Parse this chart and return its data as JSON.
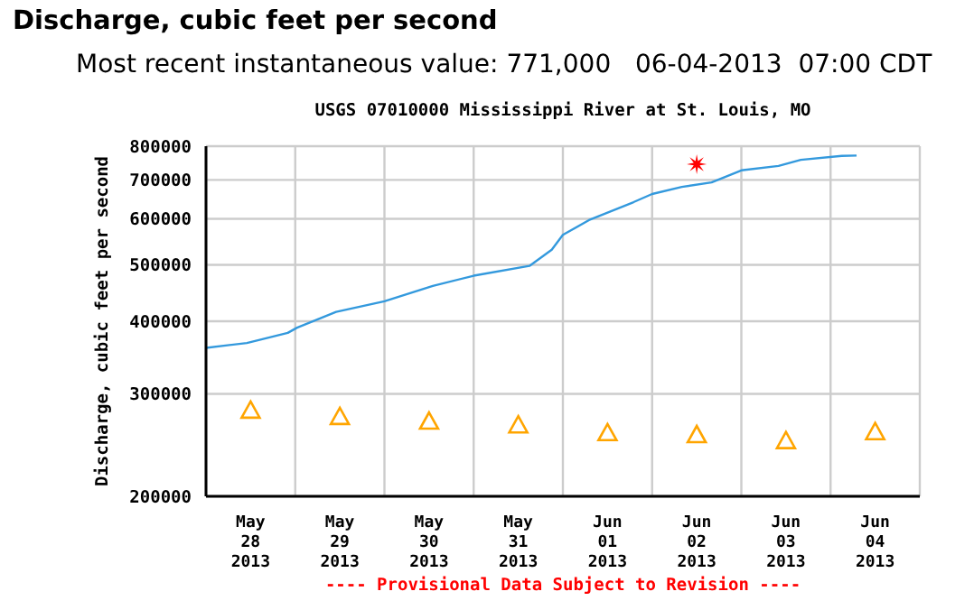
{
  "chart_data": {
    "type": "line",
    "title": "Discharge, cubic feet per second",
    "subtitle": "Most recent instantaneous value: 771,000   06-04-2013  07:00 CDT",
    "ylabel": "Discharge, cubic feet per second",
    "annotations": [
      "USGS 07010000 Mississippi River at St. Louis, MO",
      "---- Provisional Data Subject to Revision ----"
    ],
    "log": "y",
    "grid": true,
    "xlim": [
      "2013-05-28T00:00",
      "2013-06-05T00:00"
    ],
    "xticks": [
      {
        "value": "2013-05-28T00:00",
        "label": null
      },
      {
        "value": "2013-05-28T12:00",
        "label": "May 28 2013"
      },
      {
        "value": "2013-05-29T00:00",
        "label": null
      },
      {
        "value": "2013-05-29T12:00",
        "label": "May 29 2013"
      },
      {
        "value": "2013-05-30T00:00",
        "label": null
      },
      {
        "value": "2013-05-30T12:00",
        "label": "May 30 2013"
      },
      {
        "value": "2013-05-31T00:00",
        "label": null
      },
      {
        "value": "2013-05-31T12:00",
        "label": "May 31 2013"
      },
      {
        "value": "2013-06-01T00:00",
        "label": null
      },
      {
        "value": "2013-06-01T12:00",
        "label": "Jun 01 2013"
      },
      {
        "value": "2013-06-02T00:00",
        "label": null
      },
      {
        "value": "2013-06-02T12:00",
        "label": "Jun 02 2013"
      },
      {
        "value": "2013-06-03T00:00",
        "label": null
      },
      {
        "value": "2013-06-03T12:00",
        "label": "Jun 03 2013"
      },
      {
        "value": "2013-06-04T00:00",
        "label": null
      },
      {
        "value": "2013-06-04T12:00",
        "label": "Jun 04 2013"
      },
      {
        "value": "2013-06-05T00:00",
        "label": null
      }
    ],
    "ylim": [
      200000,
      800000
    ],
    "yticks": [
      200000,
      300000,
      400000,
      500000,
      600000,
      700000,
      800000
    ],
    "series": [
      {
        "color": "#3399dd",
        "marker": "none",
        "x": [
          "2013-05-28T00:00",
          "2013-05-28T11:00",
          "2013-05-28T22:00",
          "2013-05-29T00:30",
          "2013-05-29T11:00",
          "2013-05-30T00:00",
          "2013-05-30T13:00",
          "2013-05-31T00:00",
          "2013-05-31T15:00",
          "2013-05-31T21:00",
          "2013-06-01T00:00",
          "2013-06-01T07:00",
          "2013-06-01T19:00",
          "2013-06-02T00:00",
          "2013-06-02T08:00",
          "2013-06-02T16:00",
          "2013-06-03T00:00",
          "2013-06-03T10:00",
          "2013-06-03T16:00",
          "2013-06-04T03:00",
          "2013-06-04T07:00"
        ],
        "values": [
          360000,
          367000,
          382000,
          390000,
          415000,
          433000,
          460000,
          479000,
          498000,
          531000,
          563000,
          597000,
          641000,
          662000,
          681000,
          693000,
          727000,
          740000,
          758000,
          770000,
          771000
        ]
      },
      {
        "type": "scatter",
        "color": "#ff0000",
        "marker": "star",
        "x": [
          "2013-06-02T12:00"
        ],
        "values": [
          745000
        ]
      },
      {
        "type": "scatter",
        "color": "#ffa500",
        "marker": "triangle",
        "x": [
          "2013-05-28T12:00",
          "2013-05-29T12:00",
          "2013-05-30T12:00",
          "2013-05-31T12:00",
          "2013-06-01T12:00",
          "2013-06-02T12:00",
          "2013-06-03T12:00",
          "2013-06-04T12:00"
        ],
        "values": [
          281000,
          274000,
          269000,
          265000,
          257000,
          255000,
          249000,
          258000
        ]
      }
    ]
  }
}
